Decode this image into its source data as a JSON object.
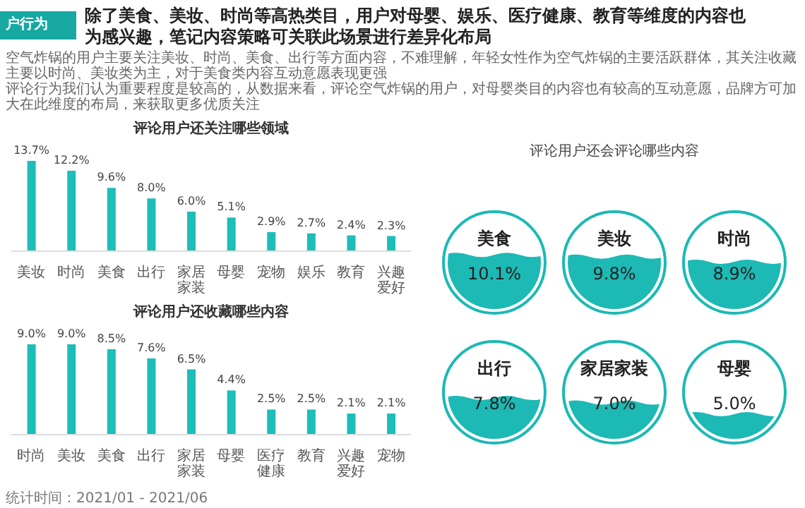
{
  "chart_data": [
    {
      "type": "bar",
      "title": "评论用户还关注哪些领域",
      "annotations": [
        "户行为",
        "除了美食、美妆、时尚等高热类目，用户对母婴、娱乐、医疗健康、教育等维度的内容也",
        "为感兴趣，笔记内容策略可关联此场景进行差异化布局",
        "空气炸锅的用户主要关注美妆、时尚、美食、出行等方面内容，不难理解，年轻女性作为空气炸锅的主要活跃群体，其关注收藏主要以时尚、美妆类为主，对于美食类内容互动意愿表现更强",
        "评论行为我们认为重要程度是较高的，从数据来看，评论空气炸锅的用户，对母婴类目的内容也有较高的互动意愿，品牌方可加大在此维度的布局，来获取更多优质关注"
      ],
      "categories": [
        "美妆",
        "时尚",
        "美食",
        "出行",
        "家居家装",
        "母婴",
        "宠物",
        "娱乐",
        "教育",
        "兴趣爱好"
      ],
      "values": [
        13.7,
        12.2,
        9.6,
        8.0,
        6.0,
        5.1,
        2.9,
        2.7,
        2.4,
        2.3
      ],
      "value_labels": [
        "13.7%",
        "12.2%",
        "9.6%",
        "8.0%",
        "6.0%",
        "5.1%",
        "2.9%",
        "2.7%",
        "2.4%",
        "2.3%"
      ],
      "color": "#1dbdb9"
    },
    {
      "type": "bar",
      "title": "评论用户还收藏哪些内容",
      "annotations": [
        "统计时间：2021/01 - 2021/06"
      ],
      "categories": [
        "时尚",
        "美妆",
        "美食",
        "出行",
        "家居家装",
        "母婴",
        "医疗健康",
        "教育",
        "兴趣爱好",
        "宠物"
      ],
      "values": [
        9.0,
        9.0,
        8.5,
        7.6,
        6.5,
        4.4,
        2.5,
        2.5,
        2.1,
        2.1
      ],
      "value_labels": [
        "9.0%",
        "9.0%",
        "8.5%",
        "7.6%",
        "6.5%",
        "4.4%",
        "2.5%",
        "2.5%",
        "2.1%",
        "2.1%"
      ],
      "color": "#1dbdb9"
    },
    {
      "type": "other",
      "title": "评论用户还会评论哪些内容",
      "categories": [
        "美食",
        "美妆",
        "时尚",
        "出行",
        "家居家装",
        "母婴"
      ],
      "values": [
        10.1,
        9.8,
        8.9,
        7.8,
        7.0,
        5.0
      ],
      "value_labels": [
        "10.1%",
        "9.8%",
        "8.9%",
        "7.8%",
        "7.0%",
        "5.0%"
      ],
      "color": "#1cb9b5"
    }
  ]
}
